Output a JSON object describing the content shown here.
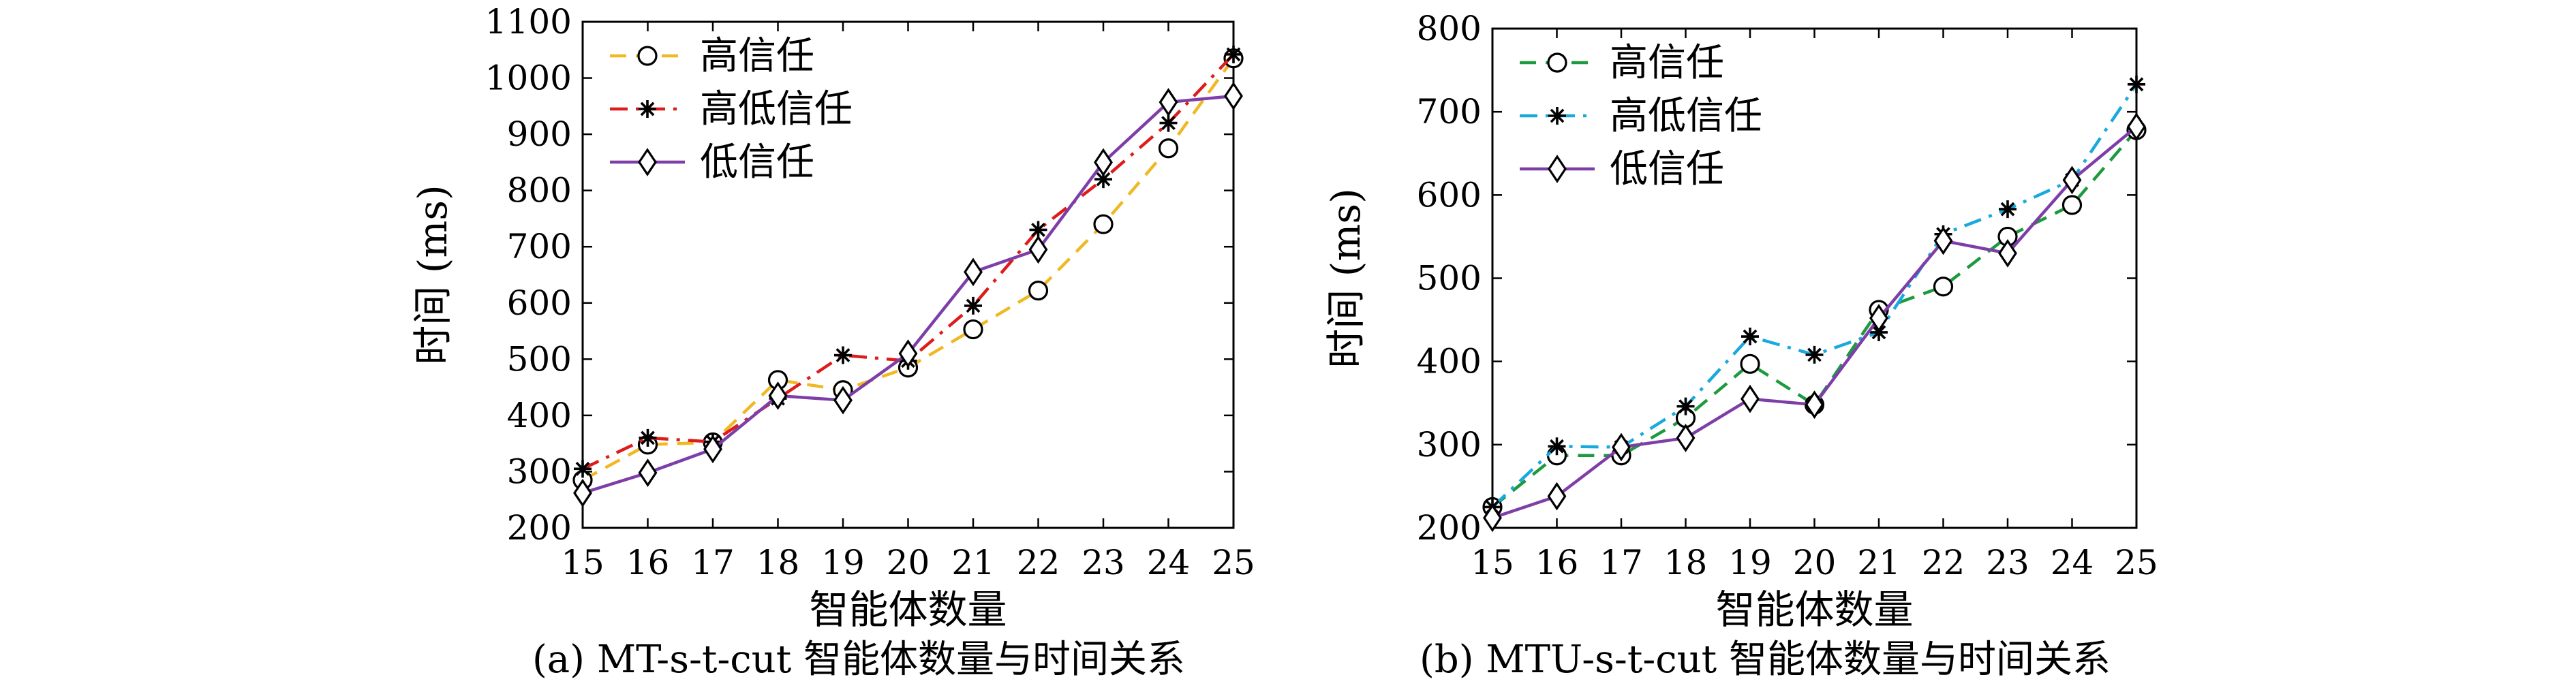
{
  "chart_data": [
    {
      "type": "line",
      "caption": "(a) MT-s-t-cut 智能体数量与时间关系",
      "xlabel": "智能体数量",
      "ylabel": "时间 (ms)",
      "x": [
        15,
        16,
        17,
        18,
        19,
        20,
        21,
        22,
        23,
        24,
        25
      ],
      "xlim": [
        15,
        25
      ],
      "ylim": [
        200,
        1100
      ],
      "yticks": [
        200,
        300,
        400,
        500,
        600,
        700,
        800,
        900,
        1000,
        1100
      ],
      "legend_position": "top-left",
      "grid": false,
      "series": [
        {
          "name": "高信任",
          "color": "#f0b823",
          "line_style": "dashed",
          "marker": "circle",
          "values": [
            285,
            348,
            352,
            463,
            445,
            485,
            553,
            622,
            740,
            875,
            1035
          ]
        },
        {
          "name": "高低信任",
          "color": "#dd1c1c",
          "line_style": "dash-dot",
          "marker": "asterisk",
          "values": [
            305,
            360,
            353,
            430,
            507,
            497,
            595,
            730,
            820,
            920,
            1042
          ]
        },
        {
          "name": "低信任",
          "color": "#7e3ea8",
          "line_style": "solid",
          "marker": "diamond",
          "values": [
            262,
            298,
            340,
            435,
            427,
            510,
            655,
            695,
            850,
            957,
            968
          ]
        }
      ]
    },
    {
      "type": "line",
      "caption": "(b) MTU-s-t-cut 智能体数量与时间关系",
      "xlabel": "智能体数量",
      "ylabel": "时间 (ms)",
      "x": [
        15,
        16,
        17,
        18,
        19,
        20,
        21,
        22,
        23,
        24,
        25
      ],
      "xlim": [
        15,
        25
      ],
      "ylim": [
        200,
        800
      ],
      "yticks": [
        200,
        300,
        400,
        500,
        600,
        700,
        800
      ],
      "legend_position": "top-left",
      "grid": false,
      "series": [
        {
          "name": "高信任",
          "color": "#1e9a3e",
          "line_style": "dashed",
          "marker": "circle",
          "values": [
            225,
            287,
            287,
            332,
            397,
            348,
            462,
            490,
            550,
            588,
            678
          ]
        },
        {
          "name": "高低信任",
          "color": "#1aa9dc",
          "line_style": "dash-dot",
          "marker": "asterisk",
          "values": [
            225,
            298,
            297,
            346,
            430,
            408,
            435,
            553,
            583,
            618,
            733
          ]
        },
        {
          "name": "低信任",
          "color": "#7e3ea8",
          "line_style": "solid",
          "marker": "diamond",
          "values": [
            212,
            238,
            297,
            308,
            355,
            348,
            452,
            545,
            530,
            618,
            682
          ]
        }
      ]
    }
  ]
}
